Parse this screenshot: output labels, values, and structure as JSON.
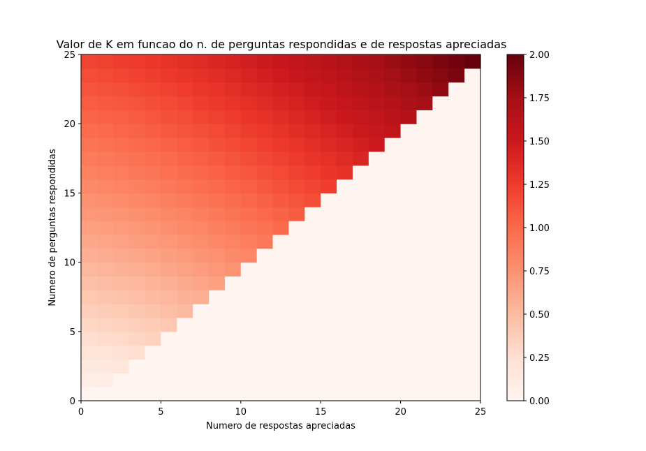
{
  "chart_data": {
    "type": "heatmap",
    "title": "Valor de K em funcao do n. de perguntas respondidas e de respostas apreciadas",
    "xlabel": "Numero de respostas apreciadas",
    "ylabel": "Numero de perguntas respondidas",
    "xlim": [
      0,
      25
    ],
    "ylim": [
      0,
      25
    ],
    "x_ticks": [
      "0",
      "5",
      "10",
      "15",
      "20",
      "25"
    ],
    "y_ticks": [
      "0",
      "5",
      "10",
      "15",
      "20",
      "25"
    ],
    "grid": false,
    "colormap": "Reds",
    "colorbar": {
      "min": 0,
      "max": 2,
      "ticks": [
        "0.00",
        "0.25",
        "0.50",
        "0.75",
        "1.00",
        "1.25",
        "1.50",
        "1.75",
        "2.00"
      ]
    },
    "rows": 25,
    "cols": 25,
    "fill_rule": "cell (row i, column j) has a value only when j <= i; cells with j > i are 0",
    "formula": "K(i, j) = 2 * (0.6 * (i / 24)^0.85 + 0.4 * (j / 24)^1.3)"
  }
}
